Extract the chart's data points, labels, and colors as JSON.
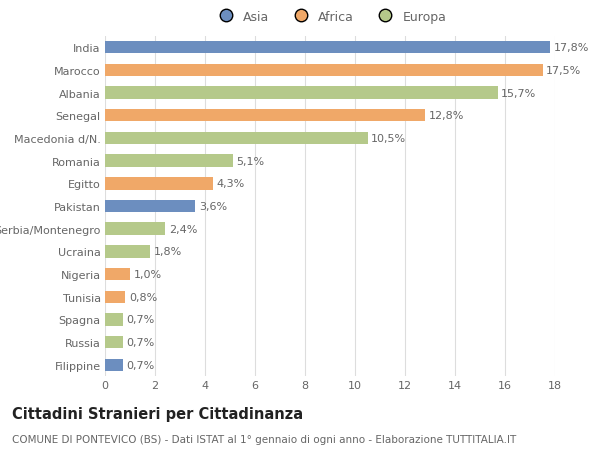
{
  "categories": [
    "India",
    "Marocco",
    "Albania",
    "Senegal",
    "Macedonia d/N.",
    "Romania",
    "Egitto",
    "Pakistan",
    "Serbia/Montenegro",
    "Ucraina",
    "Nigeria",
    "Tunisia",
    "Spagna",
    "Russia",
    "Filippine"
  ],
  "values": [
    17.8,
    17.5,
    15.7,
    12.8,
    10.5,
    5.1,
    4.3,
    3.6,
    2.4,
    1.8,
    1.0,
    0.8,
    0.7,
    0.7,
    0.7
  ],
  "labels": [
    "17,8%",
    "17,5%",
    "15,7%",
    "12,8%",
    "10,5%",
    "5,1%",
    "4,3%",
    "3,6%",
    "2,4%",
    "1,8%",
    "1,0%",
    "0,8%",
    "0,7%",
    "0,7%",
    "0,7%"
  ],
  "colors": [
    "#6c8ebf",
    "#f0a868",
    "#b5c98a",
    "#f0a868",
    "#b5c98a",
    "#b5c98a",
    "#f0a868",
    "#6c8ebf",
    "#b5c98a",
    "#b5c98a",
    "#f0a868",
    "#f0a868",
    "#b5c98a",
    "#b5c98a",
    "#6c8ebf"
  ],
  "legend_labels": [
    "Asia",
    "Africa",
    "Europa"
  ],
  "legend_colors": [
    "#6c8ebf",
    "#f0a868",
    "#b5c98a"
  ],
  "title": "Cittadini Stranieri per Cittadinanza",
  "subtitle": "COMUNE DI PONTEVICO (BS) - Dati ISTAT al 1° gennaio di ogni anno - Elaborazione TUTTITALIA.IT",
  "xlim": [
    0,
    18
  ],
  "xticks": [
    0,
    2,
    4,
    6,
    8,
    10,
    12,
    14,
    16,
    18
  ],
  "background_color": "#ffffff",
  "bar_height": 0.55,
  "grid_color": "#dddddd",
  "text_color": "#666666",
  "label_fontsize": 8.0,
  "tick_fontsize": 8.0,
  "title_fontsize": 10.5,
  "subtitle_fontsize": 7.5
}
